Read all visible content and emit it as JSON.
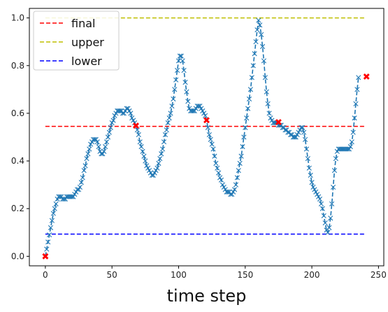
{
  "chart_data": {
    "type": "line",
    "xlabel": "time step",
    "ylabel": "",
    "xlim": [
      -12,
      254
    ],
    "ylim": [
      -0.04,
      1.04
    ],
    "xticks": [
      0,
      50,
      100,
      150,
      200,
      250
    ],
    "yticks": [
      0.0,
      0.2,
      0.4,
      0.6,
      0.8,
      1.0
    ],
    "xtick_labels": [
      "0",
      "50",
      "100",
      "150",
      "200",
      "250"
    ],
    "ytick_labels": [
      "0.0",
      "0.2",
      "0.4",
      "0.6",
      "0.8",
      "1.0"
    ],
    "grid": false,
    "legend_position": "top-left",
    "legend": [
      {
        "label": "final",
        "color": "#ff0000",
        "dash": "dashed"
      },
      {
        "label": "upper",
        "color": "#bfbf00",
        "dash": "dashed"
      },
      {
        "label": "lower",
        "color": "#0000ff",
        "dash": "dashed"
      }
    ],
    "hlines": [
      {
        "name": "final",
        "y": 0.545,
        "x": [
          0,
          240
        ],
        "color": "#ff0000"
      },
      {
        "name": "upper",
        "y": 1.0,
        "x": [
          0,
          240
        ],
        "color": "#bfbf00"
      },
      {
        "name": "lower",
        "y": 0.093,
        "x": [
          0,
          240
        ],
        "color": "#0000ff"
      }
    ],
    "series": [
      {
        "color": "#1f77b4",
        "line": "dashed",
        "marker": "x",
        "x_start": 0,
        "x_step": 1,
        "values": [
          0,
          0.03,
          0.06,
          0.09,
          0.12,
          0.15,
          0.18,
          0.2,
          0.22,
          0.24,
          0.25,
          0.25,
          0.25,
          0.24,
          0.24,
          0.24,
          0.25,
          0.25,
          0.25,
          0.25,
          0.25,
          0.25,
          0.26,
          0.27,
          0.28,
          0.28,
          0.29,
          0.31,
          0.33,
          0.36,
          0.38,
          0.41,
          0.43,
          0.45,
          0.47,
          0.48,
          0.49,
          0.49,
          0.49,
          0.48,
          0.46,
          0.44,
          0.43,
          0.43,
          0.44,
          0.46,
          0.48,
          0.5,
          0.52,
          0.54,
          0.56,
          0.57,
          0.59,
          0.6,
          0.61,
          0.61,
          0.61,
          0.61,
          0.6,
          0.6,
          0.61,
          0.62,
          0.62,
          0.61,
          0.6,
          0.58,
          0.57,
          0.56,
          0.55,
          0.53,
          0.51,
          0.48,
          0.46,
          0.44,
          0.42,
          0.4,
          0.38,
          0.37,
          0.36,
          0.35,
          0.34,
          0.34,
          0.35,
          0.36,
          0.37,
          0.39,
          0.41,
          0.43,
          0.45,
          0.48,
          0.51,
          0.53,
          0.56,
          0.58,
          0.6,
          0.63,
          0.66,
          0.7,
          0.74,
          0.78,
          0.82,
          0.84,
          0.84,
          0.82,
          0.78,
          0.73,
          0.69,
          0.65,
          0.62,
          0.61,
          0.61,
          0.61,
          0.61,
          0.62,
          0.63,
          0.63,
          0.63,
          0.62,
          0.61,
          0.6,
          0.59,
          0.57,
          0.54,
          0.51,
          0.49,
          0.47,
          0.45,
          0.42,
          0.39,
          0.37,
          0.35,
          0.33,
          0.32,
          0.3,
          0.29,
          0.28,
          0.27,
          0.27,
          0.27,
          0.26,
          0.26,
          0.27,
          0.28,
          0.3,
          0.33,
          0.36,
          0.39,
          0.42,
          0.46,
          0.5,
          0.54,
          0.58,
          0.62,
          0.66,
          0.7,
          0.75,
          0.8,
          0.85,
          0.9,
          0.95,
          0.99,
          0.97,
          0.93,
          0.88,
          0.82,
          0.75,
          0.69,
          0.64,
          0.6,
          0.58,
          0.57,
          0.56,
          0.56,
          0.56,
          0.56,
          0.55,
          0.55,
          0.55,
          0.54,
          0.54,
          0.53,
          0.53,
          0.52,
          0.52,
          0.51,
          0.51,
          0.5,
          0.5,
          0.5,
          0.51,
          0.52,
          0.53,
          0.54,
          0.54,
          0.52,
          0.49,
          0.45,
          0.41,
          0.37,
          0.34,
          0.31,
          0.29,
          0.28,
          0.27,
          0.26,
          0.25,
          0.24,
          0.22,
          0.2,
          0.17,
          0.14,
          0.11,
          0.1,
          0.12,
          0.16,
          0.22,
          0.29,
          0.36,
          0.41,
          0.44,
          0.45,
          0.45,
          0.45,
          0.45,
          0.45,
          0.45,
          0.45,
          0.45,
          0.45,
          0.46,
          0.48,
          0.52,
          0.58,
          0.64,
          0.7,
          0.75
        ]
      }
    ],
    "highlight_points": {
      "color": "#ff0000",
      "marker": "X",
      "points": [
        {
          "x": 0,
          "y": 0.0
        },
        {
          "x": 68,
          "y": 0.548
        },
        {
          "x": 121,
          "y": 0.571
        },
        {
          "x": 175,
          "y": 0.563
        },
        {
          "x": 241,
          "y": 0.754
        }
      ]
    }
  }
}
